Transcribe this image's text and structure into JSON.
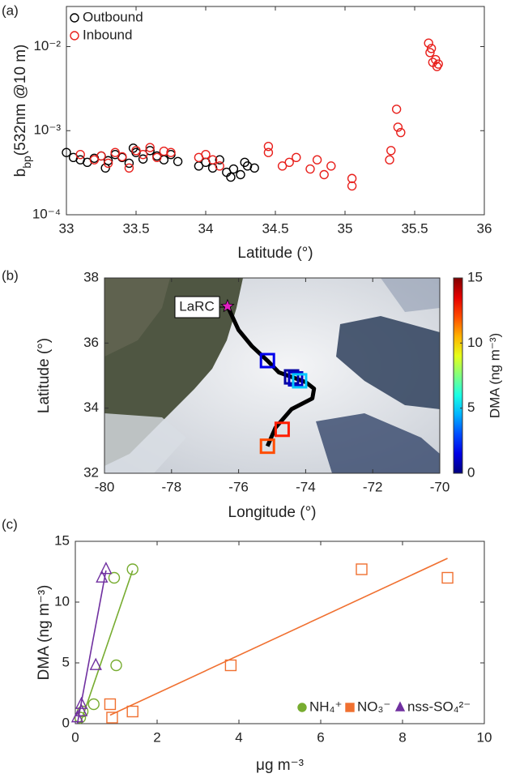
{
  "chart_data": [
    {
      "type": "scatter",
      "panel_label": "(a)",
      "yscale": "log",
      "xlabel": "Latitude (°)",
      "ylabel": {
        "text": "b",
        "sub": "bp",
        "rest": "(532nm @10 m)"
      },
      "xlim": [
        33,
        36
      ],
      "xticks": [
        33,
        33.5,
        34,
        34.5,
        35,
        35.5,
        36
      ],
      "ylim": [
        0.0001,
        0.03
      ],
      "yticks": [
        {
          "value": 0.0001,
          "label": "10⁻⁴"
        },
        {
          "value": 0.001,
          "label": "10⁻³"
        },
        {
          "value": 0.01,
          "label": "10⁻²"
        }
      ],
      "legend": "upper-left",
      "series": [
        {
          "name": "Outbound",
          "color": "#000000",
          "marker": "circle",
          "x": [
            33.0,
            33.05,
            33.1,
            33.15,
            33.2,
            33.25,
            33.3,
            33.35,
            33.4,
            33.45,
            33.5,
            33.55,
            33.6,
            33.65,
            33.7,
            33.75,
            33.8,
            33.95,
            34.0,
            34.05,
            34.1,
            34.15,
            34.2,
            34.25,
            34.3,
            34.35,
            33.28,
            33.48,
            34.18,
            34.28
          ],
          "values": [
            0.00055,
            0.00048,
            0.00045,
            0.00042,
            0.00047,
            0.0005,
            0.00044,
            0.00052,
            0.00048,
            0.00041,
            0.00055,
            0.00046,
            0.00058,
            0.0005,
            0.00045,
            0.00052,
            0.00043,
            0.00038,
            0.00042,
            0.00036,
            0.00045,
            0.00032,
            0.00035,
            0.0003,
            0.00038,
            0.00036,
            0.00036,
            0.00062,
            0.00028,
            0.00042
          ]
        },
        {
          "name": "Inbound",
          "color": "#e8201c",
          "marker": "circle",
          "x": [
            33.1,
            33.2,
            33.25,
            33.3,
            33.35,
            33.4,
            33.45,
            33.5,
            33.55,
            33.6,
            33.65,
            33.7,
            33.75,
            33.95,
            34.0,
            34.05,
            34.1,
            34.45,
            34.45,
            34.55,
            34.6,
            34.65,
            34.75,
            34.8,
            34.85,
            34.9,
            35.05,
            35.05,
            35.32,
            35.33,
            35.37,
            35.38,
            35.4,
            35.6,
            35.61,
            35.62,
            35.63,
            35.65,
            35.66,
            35.67
          ],
          "values": [
            0.00052,
            0.00045,
            0.0005,
            0.00041,
            0.00055,
            0.00049,
            0.00036,
            0.00058,
            0.00052,
            0.00063,
            0.00048,
            0.00057,
            0.00055,
            0.00048,
            0.00052,
            0.00045,
            0.00038,
            0.00065,
            0.00055,
            0.00038,
            0.00042,
            0.00048,
            0.00035,
            0.00045,
            0.0003,
            0.00038,
            0.00027,
            0.00022,
            0.00045,
            0.00058,
            0.0018,
            0.0011,
            0.00095,
            0.011,
            0.0085,
            0.0095,
            0.0065,
            0.007,
            0.0058,
            0.0062
          ]
        }
      ]
    },
    {
      "type": "map",
      "panel_label": "(b)",
      "xlabel": "Longitude (°)",
      "ylabel": "Latitude (°)",
      "xlim": [
        -80,
        -70
      ],
      "xticks": [
        -80,
        -78,
        -76,
        -74,
        -72,
        -70
      ],
      "ylim": [
        32,
        38
      ],
      "yticks": [
        32,
        34,
        36,
        38
      ],
      "track": {
        "color": "#000000",
        "x": [
          -76.33,
          -76.0,
          -75.6,
          -75.14,
          -74.8,
          -74.42,
          -74.0,
          -73.75,
          -73.8,
          -74.42,
          -74.9,
          -75.14
        ],
        "y": [
          37.13,
          36.4,
          35.9,
          35.46,
          35.1,
          34.96,
          34.8,
          34.6,
          34.3,
          33.97,
          33.4,
          32.83
        ]
      },
      "samples": {
        "x": [
          -75.14,
          -74.42,
          -74.3,
          -74.18,
          -74.7,
          -75.14
        ],
        "y": [
          35.46,
          34.96,
          34.9,
          34.84,
          33.35,
          32.83
        ],
        "values": [
          1.6,
          0.5,
          1.0,
          4.8,
          12.7,
          12.0
        ]
      },
      "annotation": {
        "text": "LaRC",
        "x": -76.33,
        "y": 37.13,
        "color": "#e020c0"
      },
      "colormap": "jet",
      "clim": [
        0,
        15
      ],
      "cticks": [
        0,
        5,
        10,
        15
      ],
      "clabel": "DMA (ng m⁻³)"
    },
    {
      "type": "scatter",
      "panel_label": "(c)",
      "yscale": "linear",
      "xlabel": "μg m⁻³",
      "ylabel": "DMA (ng m⁻³)",
      "xlim": [
        0,
        10
      ],
      "xticks": [
        0,
        2,
        4,
        6,
        8,
        10
      ],
      "ylim": [
        0,
        15
      ],
      "yticks": [
        0,
        5,
        10,
        15
      ],
      "legend": "lower-right",
      "series": [
        {
          "name": "NH₄⁺",
          "color": "#77ac30",
          "marker": "circle",
          "x": [
            0.45,
            0.18,
            0.12,
            1.0,
            0.95,
            1.4
          ],
          "values": [
            1.6,
            1.0,
            0.5,
            4.8,
            12.0,
            12.7
          ],
          "fit": {
            "x": [
              0.12,
              1.4
            ],
            "values": [
              0,
              12.6
            ]
          }
        },
        {
          "name": "NO₃⁻",
          "color": "#f07030",
          "marker": "square",
          "x": [
            0.85,
            1.4,
            0.9,
            3.8,
            9.1,
            7.0
          ],
          "values": [
            1.6,
            1.0,
            0.5,
            4.8,
            12.0,
            12.7
          ],
          "fit": {
            "x": [
              0.85,
              9.1
            ],
            "values": [
              0.7,
              13.6
            ]
          }
        },
        {
          "name": "nss-SO₄²⁻",
          "color": "#7030a0",
          "marker": "triangle",
          "x": [
            0.15,
            0.15,
            0.05,
            0.5,
            0.65,
            0.75
          ],
          "values": [
            1.6,
            1.0,
            0.5,
            4.8,
            12.0,
            12.7
          ],
          "fit": {
            "x": [
              0.05,
              0.75
            ],
            "values": [
              0,
              12.6
            ]
          }
        }
      ]
    }
  ]
}
